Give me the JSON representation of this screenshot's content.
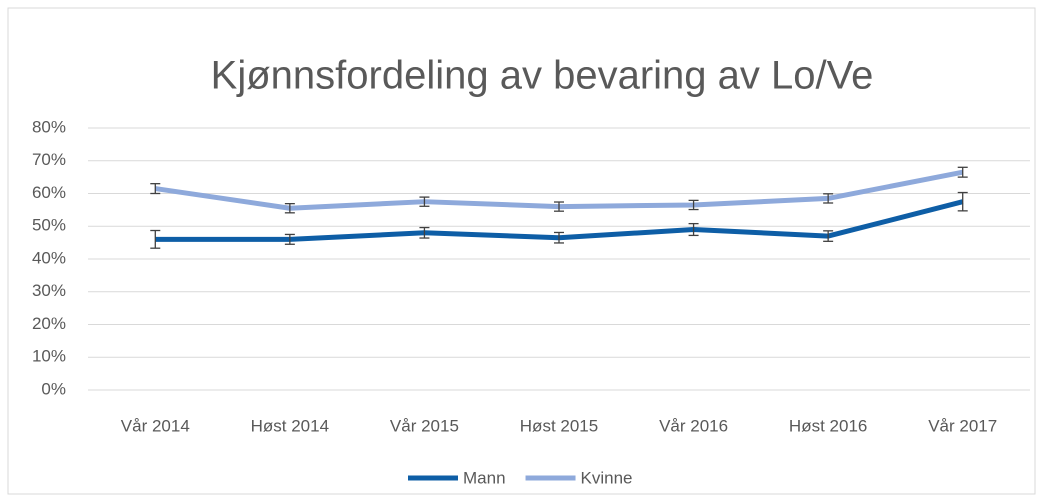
{
  "chart_data": {
    "type": "line",
    "title": "Kjønnsfordeling av bevaring av Lo/Ve",
    "categories": [
      "Vår 2014",
      "Høst 2014",
      "Vår 2015",
      "Høst 2015",
      "Vår 2016",
      "Høst 2016",
      "Vår 2017"
    ],
    "series": [
      {
        "name": "Mann",
        "color": "#0e5ea6",
        "values": [
          46,
          46,
          48,
          46.5,
          49,
          47,
          57.5
        ],
        "errors": [
          2.7,
          1.5,
          1.6,
          1.6,
          1.8,
          1.6,
          2.8
        ]
      },
      {
        "name": "Kvinne",
        "color": "#8ea9db",
        "values": [
          61.5,
          55.5,
          57.5,
          56,
          56.5,
          58.5,
          66.5
        ],
        "errors": [
          1.5,
          1.4,
          1.4,
          1.4,
          1.4,
          1.4,
          1.5
        ]
      }
    ],
    "ylim": [
      0,
      80
    ],
    "yticks": [
      {
        "value": 0,
        "label": "0%"
      },
      {
        "value": 10,
        "label": "10%"
      },
      {
        "value": 20,
        "label": "20%"
      },
      {
        "value": 30,
        "label": "30%"
      },
      {
        "value": 40,
        "label": "40%"
      },
      {
        "value": 50,
        "label": "50%"
      },
      {
        "value": 60,
        "label": "60%"
      },
      {
        "value": 70,
        "label": "70%"
      },
      {
        "value": 80,
        "label": "80%"
      }
    ],
    "grid": true,
    "legend": "bottom"
  }
}
